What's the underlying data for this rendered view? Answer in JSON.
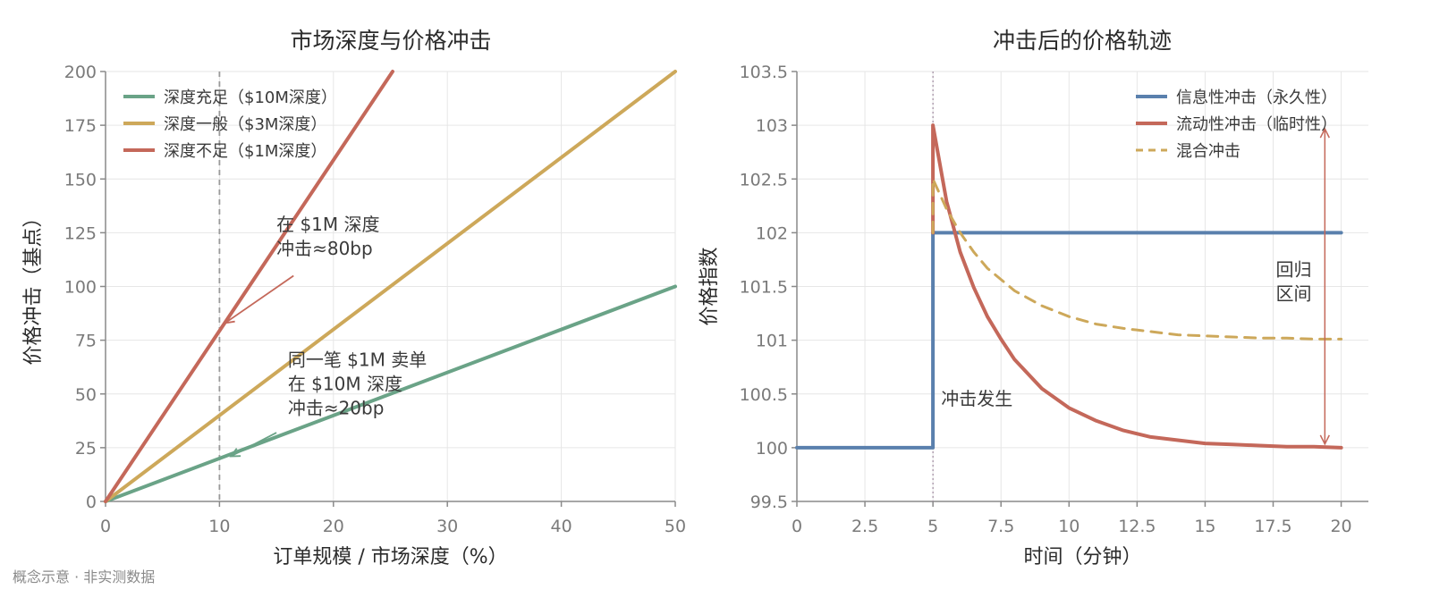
{
  "footer_note": "概念示意 · 非实测数据",
  "chart_data": [
    {
      "type": "line",
      "title": "市场深度与价格冲击",
      "xlabel": "订单规模 / 市场深度（%）",
      "ylabel": "价格冲击（基点）",
      "xlim": [
        0,
        50
      ],
      "ylim": [
        0,
        200
      ],
      "xticks": [
        0,
        10,
        20,
        30,
        40,
        50
      ],
      "yticks": [
        0,
        25,
        50,
        75,
        100,
        125,
        150,
        175,
        200
      ],
      "grid": true,
      "legend_position": "top-left",
      "series": [
        {
          "name": "深度充足（$10M深度）",
          "color": "#6aa387",
          "x": [
            0,
            50
          ],
          "y": [
            0,
            100
          ]
        },
        {
          "name": "深度一般（$3M深度）",
          "color": "#cda85a",
          "x": [
            0,
            50
          ],
          "y": [
            0,
            200
          ]
        },
        {
          "name": "深度不足（$1M深度）",
          "color": "#c4685a",
          "x": [
            0,
            25.2
          ],
          "y": [
            0,
            200
          ]
        }
      ],
      "reference_line": {
        "x": 10
      },
      "annotations": [
        {
          "lines": [
            "在 $1M 深度",
            "冲击≈80bp"
          ],
          "color": "#c4685a",
          "text_at": [
            15,
            126
          ],
          "arrow_from": [
            16.5,
            105
          ],
          "arrow_to": [
            10.5,
            83
          ]
        },
        {
          "lines": [
            "同一笔 $1M 卖单",
            "在 $10M 深度",
            "冲击≈20bp"
          ],
          "color": "#6aa387",
          "text_at": [
            16,
            63
          ],
          "arrow_from": [
            15,
            32
          ],
          "arrow_to": [
            11,
            21
          ]
        }
      ]
    },
    {
      "type": "line",
      "title": "冲击后的价格轨迹",
      "xlabel": "时间（分钟）",
      "ylabel": "价格指数",
      "xlim": [
        0,
        21
      ],
      "ylim": [
        99.5,
        103.5
      ],
      "xticks": [
        0,
        2.5,
        5,
        7.5,
        10,
        12.5,
        15,
        17.5,
        20
      ],
      "yticks": [
        99.5,
        100,
        100.5,
        101,
        101.5,
        102,
        102.5,
        103,
        103.5
      ],
      "grid": true,
      "legend_position": "top-right",
      "series": [
        {
          "name": "信息性冲击（永久性）",
          "color": "#5a80ad",
          "dash": false,
          "x": [
            0,
            5,
            5,
            20
          ],
          "y": [
            100,
            100,
            102,
            102
          ]
        },
        {
          "name": "流动性冲击（临时性）",
          "color": "#c4685a",
          "dash": false,
          "x": [
            5,
            5,
            5.5,
            6,
            6.5,
            7,
            7.5,
            8,
            9,
            10,
            11,
            12,
            13,
            14,
            15,
            16,
            17,
            18,
            19,
            20
          ],
          "y": [
            102,
            103,
            102.29,
            101.82,
            101.49,
            101.22,
            101.01,
            100.82,
            100.55,
            100.37,
            100.25,
            100.16,
            100.1,
            100.07,
            100.04,
            100.03,
            100.02,
            100.01,
            100.01,
            100
          ]
        },
        {
          "name": "混合冲击",
          "color": "#cda85a",
          "dash": true,
          "x": [
            5,
            5,
            5.5,
            6,
            6.5,
            7,
            8,
            9,
            10,
            11,
            12,
            13,
            14,
            15,
            16,
            17,
            18,
            19,
            20
          ],
          "y": [
            102,
            102.5,
            102.22,
            102,
            101.82,
            101.67,
            101.46,
            101.32,
            101.22,
            101.15,
            101.11,
            101.08,
            101.05,
            101.04,
            101.03,
            101.02,
            101.02,
            101.01,
            101.01
          ]
        }
      ],
      "reference_line": {
        "x": 5
      },
      "range_arrow": {
        "x": 19.4,
        "y_from": 103,
        "y_to": 100,
        "color": "#c4685a"
      },
      "annotations": [
        {
          "lines": [
            "冲击发生"
          ],
          "color": "#7a7a7a",
          "text_at": [
            5.3,
            100.4
          ]
        },
        {
          "lines": [
            "回归",
            "区间"
          ],
          "color": "#c4685a",
          "text_at": [
            17.6,
            101.6
          ]
        }
      ]
    }
  ]
}
